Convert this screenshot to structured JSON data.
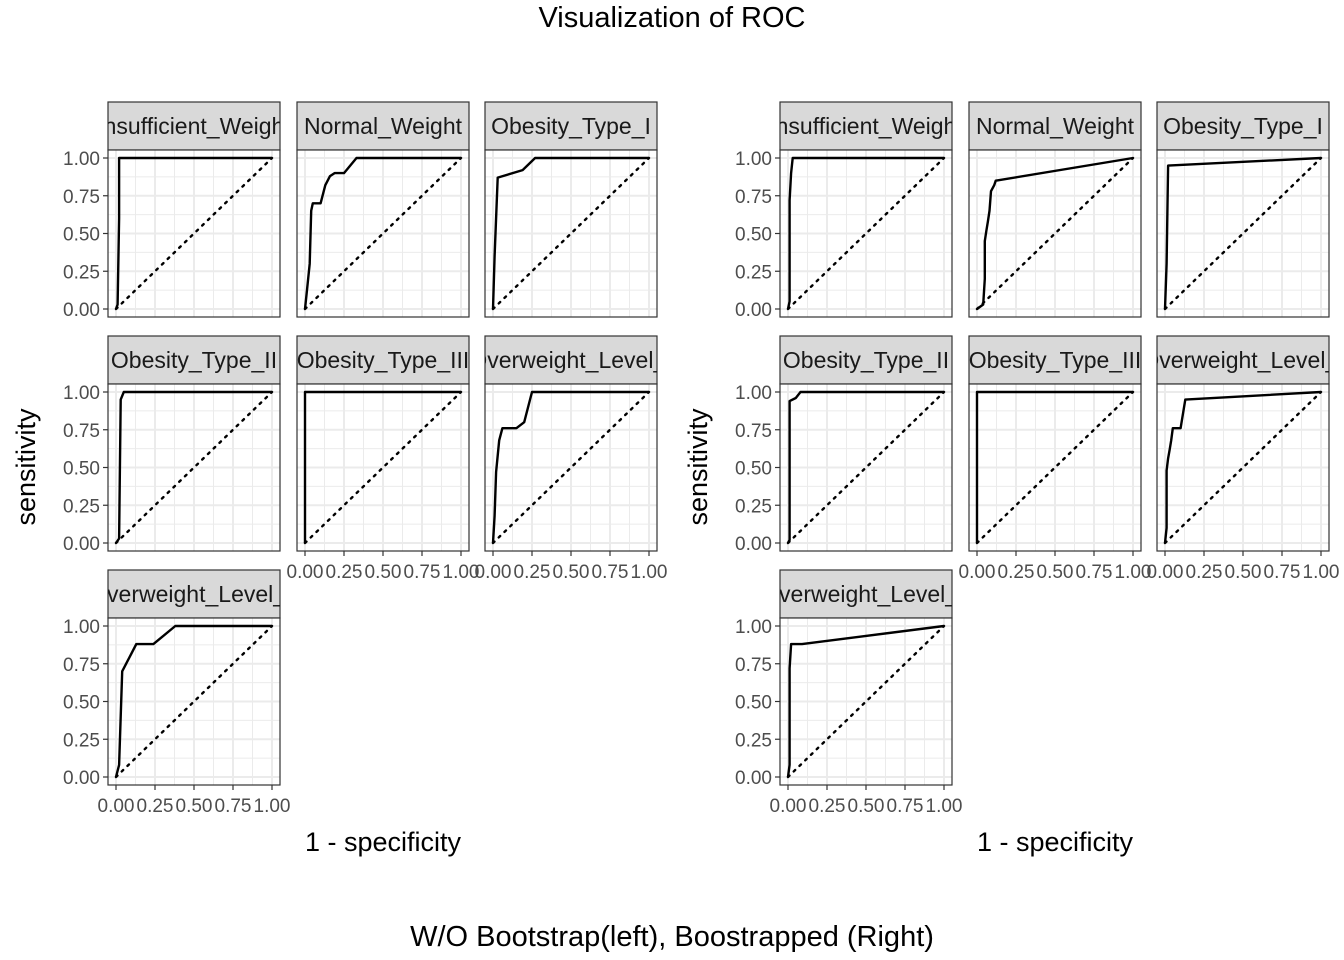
{
  "title": "Visualization of ROC",
  "caption": "W/O Bootstrap(left), Boostrapped (Right)",
  "chart_data": [
    {
      "type": "line",
      "xlabel": "1 - specificity",
      "ylabel": "sensitivity",
      "xlim": [
        0,
        1
      ],
      "ylim": [
        0,
        1
      ],
      "x_ticks": [
        "0.00",
        "0.25",
        "0.50",
        "0.75",
        "1.00"
      ],
      "y_ticks": [
        "0.00",
        "0.25",
        "0.50",
        "0.75",
        "1.00"
      ],
      "grid": true,
      "reference_line": "diagonal dotted",
      "facets": [
        {
          "label": "Insufficient_Weight",
          "points": [
            [
              0,
              0
            ],
            [
              0.01,
              0.03
            ],
            [
              0.02,
              0.6
            ],
            [
              0.02,
              1
            ],
            [
              1,
              1
            ]
          ]
        },
        {
          "label": "Normal_Weight",
          "points": [
            [
              0,
              0
            ],
            [
              0.01,
              0.1
            ],
            [
              0.03,
              0.3
            ],
            [
              0.04,
              0.65
            ],
            [
              0.05,
              0.7
            ],
            [
              0.1,
              0.7
            ],
            [
              0.13,
              0.82
            ],
            [
              0.16,
              0.88
            ],
            [
              0.19,
              0.9
            ],
            [
              0.25,
              0.9
            ],
            [
              0.33,
              1
            ],
            [
              1,
              1
            ]
          ]
        },
        {
          "label": "Obesity_Type_I",
          "points": [
            [
              0,
              0
            ],
            [
              0.01,
              0.35
            ],
            [
              0.03,
              0.87
            ],
            [
              0.19,
              0.92
            ],
            [
              0.27,
              1
            ],
            [
              1,
              1
            ]
          ]
        },
        {
          "label": "Obesity_Type_II",
          "points": [
            [
              0,
              0
            ],
            [
              0.02,
              0.03
            ],
            [
              0.03,
              0.95
            ],
            [
              0.05,
              1
            ],
            [
              1,
              1
            ]
          ]
        },
        {
          "label": "Obesity_Type_III",
          "points": [
            [
              0,
              0
            ],
            [
              0,
              1
            ],
            [
              1,
              1
            ]
          ]
        },
        {
          "label": "Overweight_Level_I",
          "points": [
            [
              0,
              0
            ],
            [
              0.01,
              0.18
            ],
            [
              0.02,
              0.47
            ],
            [
              0.04,
              0.68
            ],
            [
              0.06,
              0.76
            ],
            [
              0.15,
              0.76
            ],
            [
              0.2,
              0.8
            ],
            [
              0.25,
              1
            ],
            [
              1,
              1
            ]
          ]
        },
        {
          "label": "Overweight_Level_II",
          "points": [
            [
              0,
              0
            ],
            [
              0.02,
              0.08
            ],
            [
              0.03,
              0.4
            ],
            [
              0.04,
              0.7
            ],
            [
              0.1,
              0.82
            ],
            [
              0.13,
              0.88
            ],
            [
              0.24,
              0.88
            ],
            [
              0.38,
              1
            ],
            [
              1,
              1
            ]
          ]
        }
      ]
    },
    {
      "type": "line",
      "xlabel": "1 - specificity",
      "ylabel": "sensitivity",
      "xlim": [
        0,
        1
      ],
      "ylim": [
        0,
        1
      ],
      "x_ticks": [
        "0.00",
        "0.25",
        "0.50",
        "0.75",
        "1.00"
      ],
      "y_ticks": [
        "0.00",
        "0.25",
        "0.50",
        "0.75",
        "1.00"
      ],
      "grid": true,
      "reference_line": "diagonal dotted",
      "facets": [
        {
          "label": "Insufficient_Weight",
          "points": [
            [
              0,
              0
            ],
            [
              0.01,
              0.05
            ],
            [
              0.01,
              0.72
            ],
            [
              0.02,
              0.9
            ],
            [
              0.03,
              1
            ],
            [
              1,
              1
            ]
          ]
        },
        {
          "label": "Normal_Weight",
          "points": [
            [
              0,
              0
            ],
            [
              0.04,
              0.03
            ],
            [
              0.05,
              0.2
            ],
            [
              0.05,
              0.45
            ],
            [
              0.06,
              0.52
            ],
            [
              0.07,
              0.58
            ],
            [
              0.08,
              0.65
            ],
            [
              0.09,
              0.78
            ],
            [
              0.11,
              0.82
            ],
            [
              0.12,
              0.85
            ],
            [
              1,
              1
            ]
          ]
        },
        {
          "label": "Obesity_Type_I",
          "points": [
            [
              0,
              0
            ],
            [
              0.01,
              0.3
            ],
            [
              0.02,
              0.95
            ],
            [
              1,
              1
            ]
          ]
        },
        {
          "label": "Obesity_Type_II",
          "points": [
            [
              0,
              0
            ],
            [
              0.01,
              0.02
            ],
            [
              0.01,
              0.94
            ],
            [
              0.05,
              0.96
            ],
            [
              0.08,
              1
            ],
            [
              1,
              1
            ]
          ]
        },
        {
          "label": "Obesity_Type_III",
          "points": [
            [
              0,
              0
            ],
            [
              0,
              1
            ],
            [
              1,
              1
            ]
          ]
        },
        {
          "label": "Overweight_Level_I",
          "points": [
            [
              0,
              0
            ],
            [
              0.01,
              0.1
            ],
            [
              0.01,
              0.48
            ],
            [
              0.02,
              0.56
            ],
            [
              0.03,
              0.62
            ],
            [
              0.04,
              0.68
            ],
            [
              0.05,
              0.76
            ],
            [
              0.1,
              0.76
            ],
            [
              0.13,
              0.95
            ],
            [
              1,
              1
            ]
          ]
        },
        {
          "label": "Overweight_Level_II",
          "points": [
            [
              0,
              0
            ],
            [
              0.01,
              0.08
            ],
            [
              0.01,
              0.72
            ],
            [
              0.02,
              0.88
            ],
            [
              0.09,
              0.88
            ],
            [
              1,
              1
            ]
          ]
        }
      ]
    }
  ]
}
